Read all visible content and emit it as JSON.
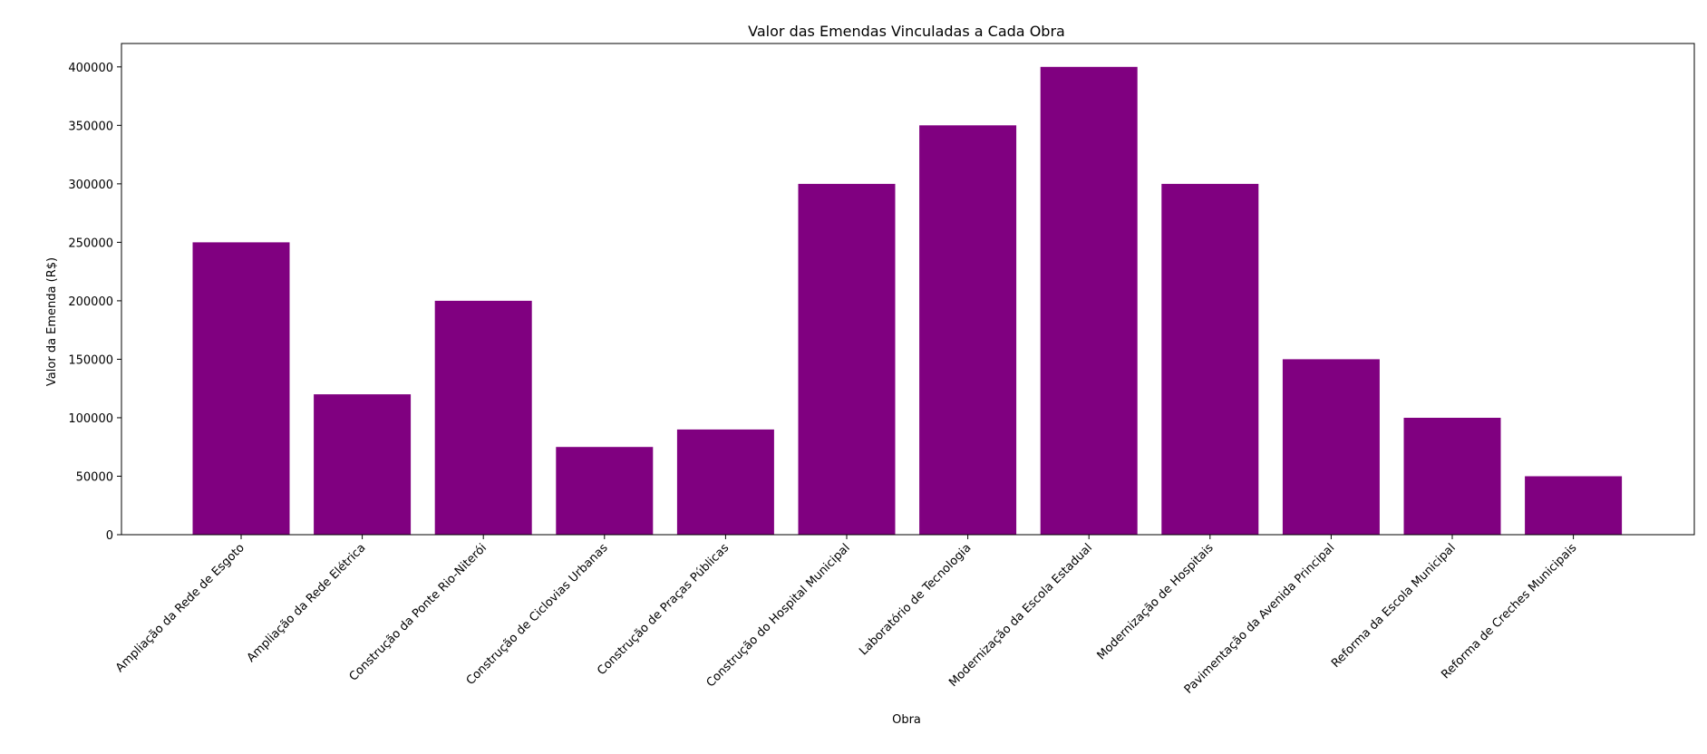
{
  "chart_data": {
    "type": "bar",
    "title": "Valor das Emendas Vinculadas a Cada Obra",
    "xlabel": "Obra",
    "ylabel": "Valor da Emenda (R$)",
    "categories": [
      "Ampliação da Rede de Esgoto",
      "Ampliação da Rede Elétrica",
      "Construção da Ponte Rio-Niterói",
      "Construção de Ciclovias Urbanas",
      "Construção de Praças Públicas",
      "Construção do Hospital Municipal",
      "Laboratório de Tecnologia",
      "Modernização da Escola Estadual",
      "Modernização de Hospitais",
      "Pavimentação da Avenida Principal",
      "Reforma da Escola Municipal",
      "Reforma de Creches Municipais"
    ],
    "values": [
      250000,
      120000,
      200000,
      75000,
      90000,
      300000,
      350000,
      400000,
      300000,
      150000,
      100000,
      50000
    ],
    "ylim": [
      0,
      420000
    ],
    "yticks": [
      0,
      50000,
      100000,
      150000,
      200000,
      250000,
      300000,
      350000,
      400000
    ],
    "grid": false,
    "bar_color": "#800080"
  }
}
